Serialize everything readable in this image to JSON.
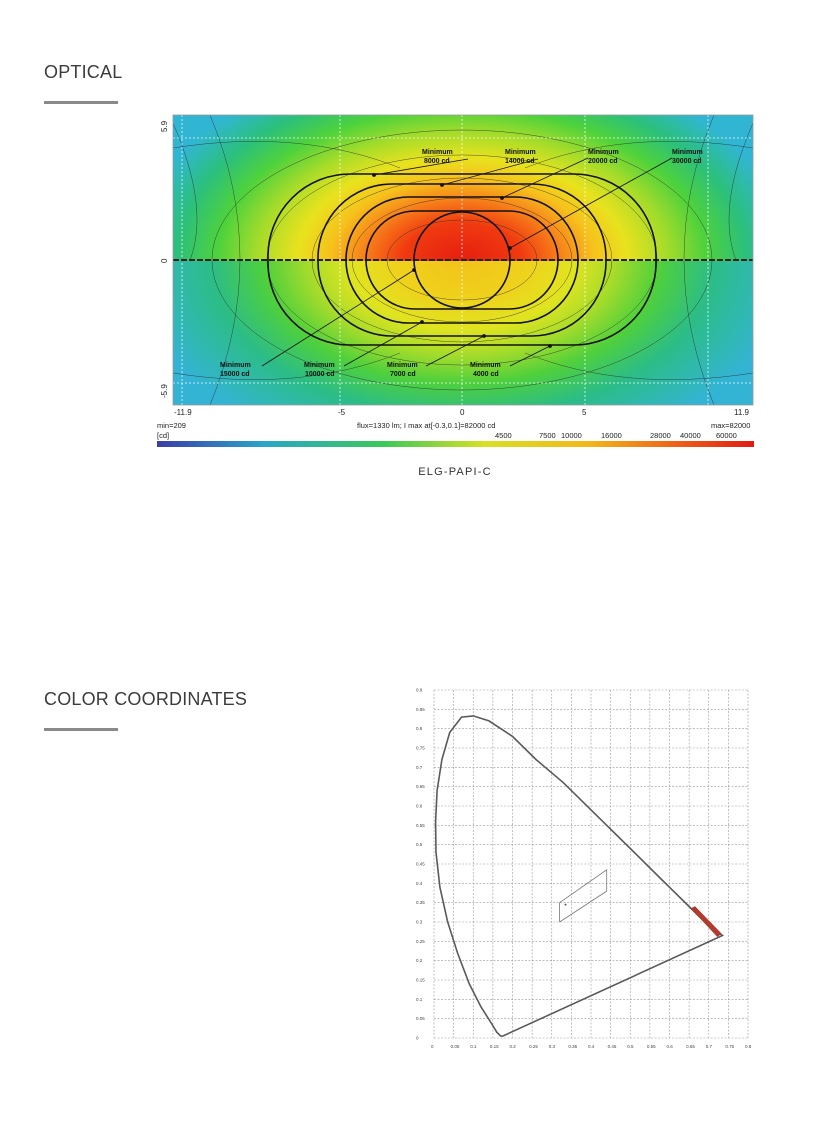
{
  "optical": {
    "heading": "OPTICAL",
    "caption": "ELG-PAPI-C",
    "y_ticks": [
      "5.9",
      "0",
      "-5.9"
    ],
    "x_ticks": [
      "-11.9",
      "-5",
      "0",
      "5",
      "11.9"
    ],
    "footer": {
      "min": "min=209",
      "flux": "flux=1330 lm; I max at[-0.3,0.1]=82000 cd",
      "max": "max=82000",
      "unit": "[cd]",
      "scale": [
        "4500",
        "7500",
        "10000",
        "16000",
        "28000",
        "40000",
        "60000"
      ]
    },
    "labels_top": [
      {
        "line1": "Minimum",
        "line2": "8000 cd"
      },
      {
        "line1": "Minimum",
        "line2": "14000 cd"
      },
      {
        "line1": "Minimum",
        "line2": "20000 cd"
      },
      {
        "line1": "Minimum",
        "line2": "30000 cd"
      }
    ],
    "labels_bottom": [
      {
        "line1": "Minimum",
        "line2": "15000 cd"
      },
      {
        "line1": "Minimum",
        "line2": "10000 cd"
      },
      {
        "line1": "Minimum",
        "line2": "7000 cd"
      },
      {
        "line1": "Minimum",
        "line2": "4000 cd"
      }
    ]
  },
  "color": {
    "heading": "COLOR COORDINATES",
    "x_ticks": [
      "0",
      "0.05",
      "0.1",
      "0.15",
      "0.2",
      "0.25",
      "0.3",
      "0.35",
      "0.4",
      "0.45",
      "0.5",
      "0.55",
      "0.6",
      "0.65",
      "0.7",
      "0.75",
      "0.8"
    ],
    "y_ticks": [
      "0.9",
      "0.85",
      "0.8",
      "0.75",
      "0.7",
      "0.65",
      "0.6",
      "0.55",
      "0.5",
      "0.45",
      "0.4",
      "0.35",
      "0.3",
      "0.25",
      "0.2",
      "0.15",
      "0.1",
      "0.05",
      "0"
    ],
    "colors": {
      "locus": "#555555",
      "red_region": "#b33a2e",
      "grid": "#9a9a9a"
    }
  }
}
